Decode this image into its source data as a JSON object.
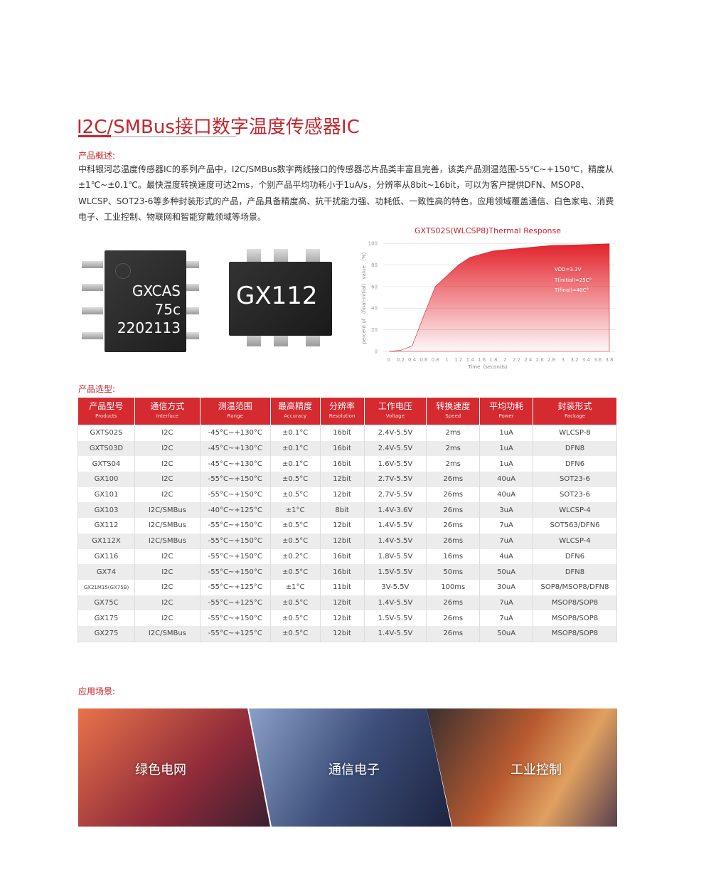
{
  "title": "I2C/SMBus接口数字温度传感器IC",
  "overview": {
    "heading": "产品概述:",
    "text": "中科银河芯温度传感器IC的系列产品中，I2C/SMBus数字两线接口的传感器芯片品类丰富且完善，该类产品测温范围-55℃~+150℃，精度从±1℃~±0.1℃。最快温度转换速度可达2ms，个别产品平均功耗小于1uA/s，分辨率从8bit~16bit，可以为客户提供DFN、MSOP8、WLCSP、SOT23-6等多种封装形式的产品，产品具备精度高、抗干扰能力强、功耗低、一致性高的特色，应用领域覆盖通信、白色家电、消费电子、工业控制、物联网和智能穿戴领域等场景。"
  },
  "chip_images": {
    "chip1": [
      "GXCAS",
      "75c",
      "2202113"
    ],
    "chip2": "GX112"
  },
  "chart_data": {
    "type": "area",
    "title": "GXTS02S(WLCSP8)Thermal Response",
    "xlabel": "Time（seconds)",
    "ylabel": "percent of （final-initial） value （%）",
    "xlim": [
      0,
      3.8
    ],
    "ylim": [
      0,
      100
    ],
    "xticks": [
      "0",
      "0.2",
      "0.4",
      "0.6",
      "0.8",
      "1",
      "1.2",
      "1.4",
      "1.6",
      "1.8",
      "2",
      "2.2",
      "2.4",
      "2.6",
      "2.8",
      "3",
      "3.2",
      "3.4",
      "3.6",
      "3.8"
    ],
    "yticks": [
      "0",
      "20",
      "40",
      "60",
      "80",
      "100"
    ],
    "grid": true,
    "color": "#e3232c",
    "annotations": [
      "VDD=3.3V",
      "T(initial)=25C°",
      "T(final)=40C°"
    ],
    "x": [
      0,
      0.2,
      0.4,
      0.6,
      0.8,
      1.0,
      1.2,
      1.4,
      1.6,
      1.8,
      2.0,
      2.4,
      2.8,
      3.2,
      3.8
    ],
    "y": [
      0,
      1,
      5,
      33,
      60,
      70,
      80,
      87,
      90,
      93,
      94,
      96,
      98,
      98.5,
      99.5
    ]
  },
  "selection": {
    "heading": "产品选型:",
    "columns": [
      {
        "cn": "产品型号",
        "en": "Products"
      },
      {
        "cn": "通信方式",
        "en": "Interface"
      },
      {
        "cn": "测温范围",
        "en": "Range"
      },
      {
        "cn": "最高精度",
        "en": "Accuracy"
      },
      {
        "cn": "分辨率",
        "en": "Resolution"
      },
      {
        "cn": "工作电压",
        "en": "Voltage"
      },
      {
        "cn": "转换速度",
        "en": "Speed"
      },
      {
        "cn": "平均功耗",
        "en": "Power"
      },
      {
        "cn": "封装形式",
        "en": "Package"
      }
    ],
    "rows": [
      [
        "GXTS02S",
        "I2C",
        "-45°C~+130°C",
        "±0.1°C",
        "16bit",
        "2.4V-5.5V",
        "2ms",
        "1uA",
        "WLCSP-8"
      ],
      [
        "GXTS03D",
        "I2C",
        "-45°C~+130°C",
        "±0.1°C",
        "16bit",
        "2.4V-5.5V",
        "2ms",
        "1uA",
        "DFN8"
      ],
      [
        "GXTS04",
        "I2C",
        "-45°C~+130°C",
        "±0.1°C",
        "16bit",
        "1.6V-5.5V",
        "2ms",
        "1uA",
        "DFN6"
      ],
      [
        "GX100",
        "I2C",
        "-55°C~+150°C",
        "±0.5°C",
        "12bit",
        "2.7V-5.5V",
        "26ms",
        "40uA",
        "SOT23-6"
      ],
      [
        "GX101",
        "I2C",
        "-55°C~+150°C",
        "±0.5°C",
        "12bit",
        "2.7V-5.5V",
        "26ms",
        "40uA",
        "SOT23-6"
      ],
      [
        "GX103",
        "I2C/SMBus",
        "-40°C~+125°C",
        "±1°C",
        "8bit",
        "1.4V-3.6V",
        "26ms",
        "3uA",
        "WLCSP-4"
      ],
      [
        "GX112",
        "I2C/SMBus",
        "-55°C~+150°C",
        "±0.5°C",
        "12bit",
        "1.4V-5.5V",
        "26ms",
        "7uA",
        "SOT563/DFN6"
      ],
      [
        "GX112X",
        "I2C/SMBus",
        "-55°C~+150°C",
        "±0.5°C",
        "12bit",
        "1.4V-5.5V",
        "26ms",
        "7uA",
        "WLCSP-4"
      ],
      [
        "GX116",
        "I2C",
        "-55°C~+150°C",
        "±0.2°C",
        "16bit",
        "1.8V-5.5V",
        "16ms",
        "4uA",
        "DFN6"
      ],
      [
        "GX74",
        "I2C",
        "-55°C~+150°C",
        "±0.5°C",
        "16bit",
        "1.5V-5.5V",
        "50ms",
        "50uA",
        "DFN8"
      ],
      [
        "GX21M15(GX75B)",
        "I2C",
        "-55°C~+125°C",
        "±1°C",
        "11bit",
        "3V-5.5V",
        "100ms",
        "30uA",
        "SOP8/MSOP8/DFN8"
      ],
      [
        "GX75C",
        "I2C",
        "-55°C~+125°C",
        "±0.5°C",
        "12bit",
        "1.4V-5.5V",
        "26ms",
        "7uA",
        "MSOP8/SOP8"
      ],
      [
        "GX175",
        "I2C",
        "-55°C~+150°C",
        "±0.5°C",
        "12bit",
        "1.5V-5.5V",
        "26ms",
        "7uA",
        "MSOP8/SOP8"
      ],
      [
        "GX275",
        "I2C/SMBus",
        "-55°C~+125°C",
        "±0.5°C",
        "12bit",
        "1.4V-5.5V",
        "26ms",
        "50uA",
        "MSOP8/SOP8"
      ]
    ]
  },
  "applications": {
    "heading": "应用场景:",
    "items": [
      "绿色电网",
      "通信电子",
      "工业控制"
    ]
  },
  "colors": {
    "accent": "#d62a31",
    "title": "#c5252e"
  }
}
